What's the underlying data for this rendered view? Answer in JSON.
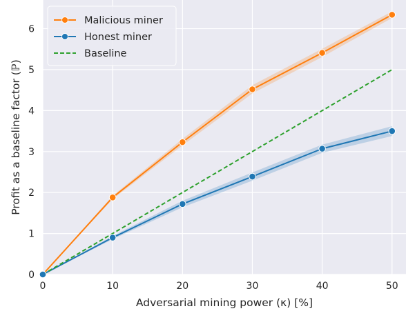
{
  "chart_data": {
    "type": "line",
    "xlabel": "Adversarial mining power (κ) [%]",
    "ylabel": "Profit as a baseline factor (ℙ)",
    "xlim": [
      0,
      52
    ],
    "ylim": [
      0,
      6.7
    ],
    "xticks": [
      0,
      10,
      20,
      30,
      40,
      50
    ],
    "yticks": [
      0,
      1,
      2,
      3,
      4,
      5,
      6
    ],
    "grid": true,
    "legend_position": "top-left",
    "series": [
      {
        "name": "Malicious miner",
        "color": "#ff7f0e",
        "marker": "circle",
        "dashed": false,
        "x": [
          0,
          10,
          20,
          30,
          40,
          50
        ],
        "y": [
          0,
          1.88,
          3.23,
          4.52,
          5.41,
          6.34
        ],
        "band_half_width": [
          0,
          0.04,
          0.08,
          0.1,
          0.1,
          0.08
        ]
      },
      {
        "name": "Honest miner",
        "color": "#1f77b4",
        "marker": "circle",
        "dashed": false,
        "x": [
          0,
          10,
          20,
          30,
          40,
          50
        ],
        "y": [
          0,
          0.9,
          1.72,
          2.39,
          3.07,
          3.5
        ],
        "band_half_width": [
          0,
          0.04,
          0.08,
          0.1,
          0.1,
          0.12
        ]
      },
      {
        "name": "Baseline",
        "color": "#2ca02c",
        "marker": "none",
        "dashed": true,
        "x": [
          0,
          50
        ],
        "y": [
          0,
          5
        ]
      }
    ]
  }
}
